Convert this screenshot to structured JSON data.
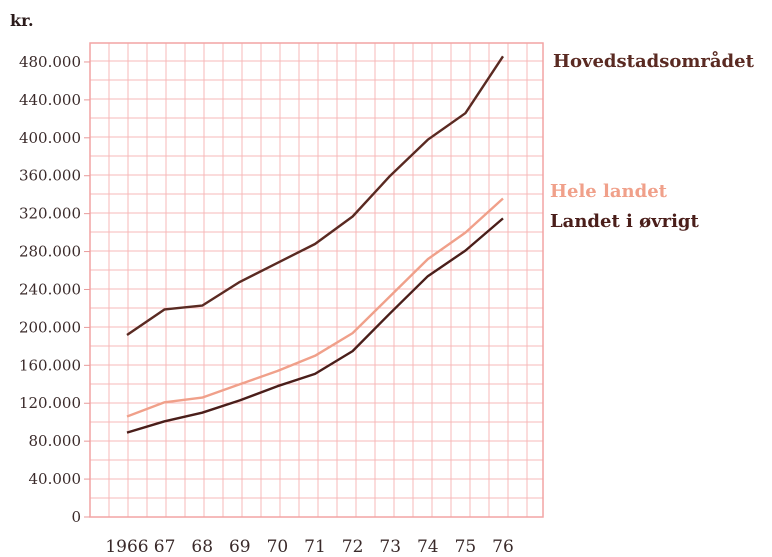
{
  "chart_data": {
    "type": "line",
    "unit_label": "kr.",
    "x_tick_labels": [
      "1966",
      "67",
      "68",
      "69",
      "70",
      "71",
      "72",
      "73",
      "74",
      "75",
      "76"
    ],
    "x": [
      1966,
      1967,
      1968,
      1969,
      1970,
      1971,
      1972,
      1973,
      1974,
      1975,
      1976
    ],
    "ylim": [
      0,
      500000
    ],
    "y_ticks": [
      0,
      40000,
      80000,
      120000,
      160000,
      200000,
      240000,
      280000,
      320000,
      360000,
      400000,
      440000,
      480000
    ],
    "y_tick_labels": [
      "0",
      "40.000",
      "80.000",
      "120.000",
      "160.000",
      "200.000",
      "240.000",
      "280.000",
      "320.000",
      "360.000",
      "400.000",
      "440.000",
      "480.000"
    ],
    "grid": true,
    "series": [
      {
        "name": "Hovedstadsområdet",
        "color": "#5a2a22",
        "values": [
          192000,
          219000,
          223000,
          248000,
          268000,
          288000,
          317000,
          360000,
          398000,
          426000,
          486000
        ]
      },
      {
        "name": "Hele landet",
        "color": "#f0a08a",
        "values": [
          106000,
          121000,
          126000,
          140000,
          154000,
          170000,
          194000,
          233000,
          272000,
          300000,
          336000
        ]
      },
      {
        "name": "Landet i øvrigt",
        "color": "#4a1e1a",
        "values": [
          89000,
          101000,
          110000,
          123000,
          138000,
          151000,
          175000,
          215000,
          254000,
          281000,
          315000
        ]
      }
    ]
  }
}
